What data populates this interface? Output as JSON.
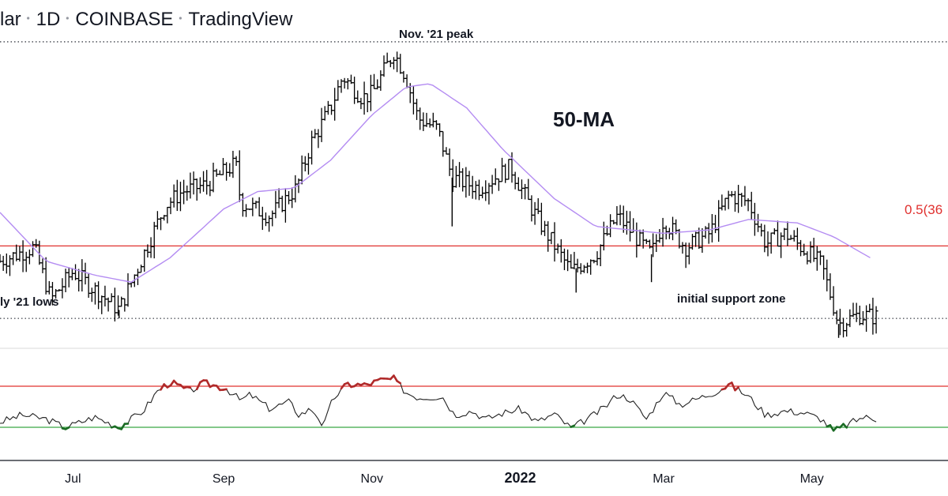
{
  "header": {
    "title_parts": [
      "lar",
      "1D",
      "COINBASE",
      "TradingView"
    ]
  },
  "annotations": {
    "peak": "Nov. '21 peak",
    "lows": "ly '21 lows",
    "support": "initial support zone",
    "ma": "50-MA",
    "fib": "0.5(36"
  },
  "colors": {
    "candle": "#000000",
    "ma": "#b48cf2",
    "fib_line": "#e0312f",
    "osc_line": "#222222",
    "osc_over": "#e0312f",
    "osc_under": "#3aa845",
    "osc_red_seg": "#b02a2a",
    "osc_green_seg": "#1a6b24",
    "separator": "#d8d8d8"
  },
  "chart_data": {
    "type": "line",
    "period": "1D",
    "x_ticks": [
      {
        "label": "Jul",
        "date": "2021-07-01",
        "bold": false
      },
      {
        "label": "Sep",
        "date": "2021-09-01",
        "bold": false
      },
      {
        "label": "Nov",
        "date": "2021-11-01",
        "bold": false
      },
      {
        "label": "2022",
        "date": "2022-01-01",
        "bold": true
      },
      {
        "label": "Mar",
        "date": "2022-03-01",
        "bold": false
      },
      {
        "label": "May",
        "date": "2022-05-01",
        "bold": false
      }
    ],
    "x_range": [
      "2021-06-01",
      "2022-06-26"
    ],
    "price_range": [
      25000,
      75000
    ],
    "price_levels": {
      "peak": 69000,
      "fib_05": 39700,
      "lows": 29300
    },
    "price_series": {
      "name": "price",
      "points": [
        [
          "2021-06-01",
          37500
        ],
        [
          "2021-06-15",
          39500
        ],
        [
          "2021-06-22",
          32000
        ],
        [
          "2021-07-01",
          36000
        ],
        [
          "2021-07-20",
          30500
        ],
        [
          "2021-08-01",
          40000
        ],
        [
          "2021-08-08",
          45500
        ],
        [
          "2021-08-15",
          47500
        ],
        [
          "2021-08-25",
          48500
        ],
        [
          "2021-09-06",
          51500
        ],
        [
          "2021-09-08",
          46000
        ],
        [
          "2021-09-20",
          44000
        ],
        [
          "2021-10-01",
          48000
        ],
        [
          "2021-10-07",
          54500
        ],
        [
          "2021-10-15",
          59500
        ],
        [
          "2021-10-20",
          64000
        ],
        [
          "2021-10-28",
          61000
        ],
        [
          "2021-11-01",
          61500
        ],
        [
          "2021-11-10",
          67500
        ],
        [
          "2021-11-15",
          64000
        ],
        [
          "2021-11-20",
          58000
        ],
        [
          "2021-11-28",
          56500
        ],
        [
          "2021-12-04",
          49500
        ],
        [
          "2021-12-15",
          48000
        ],
        [
          "2021-12-28",
          51000
        ],
        [
          "2022-01-05",
          45500
        ],
        [
          "2022-01-10",
          42500
        ],
        [
          "2022-01-22",
          36000
        ],
        [
          "2022-02-01",
          38500
        ],
        [
          "2022-02-10",
          44000
        ],
        [
          "2022-02-20",
          40000
        ],
        [
          "2022-02-24",
          38500
        ],
        [
          "2022-03-01",
          43500
        ],
        [
          "2022-03-10",
          39500
        ],
        [
          "2022-03-20",
          41500
        ],
        [
          "2022-03-28",
          47000
        ],
        [
          "2022-04-05",
          46000
        ],
        [
          "2022-04-12",
          40000
        ],
        [
          "2022-04-20",
          41500
        ],
        [
          "2022-04-30",
          38500
        ],
        [
          "2022-05-05",
          37000
        ],
        [
          "2022-05-10",
          31000
        ],
        [
          "2022-05-12",
          28500
        ],
        [
          "2022-05-20",
          29800
        ],
        [
          "2022-05-28",
          29500
        ]
      ]
    },
    "ma_series": {
      "name": "50-MA",
      "points": [
        [
          "2021-06-01",
          44500
        ],
        [
          "2021-06-20",
          37500
        ],
        [
          "2021-07-10",
          35500
        ],
        [
          "2021-07-25",
          34500
        ],
        [
          "2021-08-10",
          38000
        ],
        [
          "2021-09-01",
          45000
        ],
        [
          "2021-09-15",
          47500
        ],
        [
          "2021-09-30",
          48000
        ],
        [
          "2021-10-15",
          52000
        ],
        [
          "2021-11-01",
          58500
        ],
        [
          "2021-11-15",
          62500
        ],
        [
          "2021-11-25",
          63000
        ],
        [
          "2021-12-10",
          59500
        ],
        [
          "2021-12-25",
          53500
        ],
        [
          "2022-01-15",
          46500
        ],
        [
          "2022-02-01",
          42500
        ],
        [
          "2022-02-15",
          42000
        ],
        [
          "2022-03-01",
          41500
        ],
        [
          "2022-03-20",
          42000
        ],
        [
          "2022-04-05",
          43500
        ],
        [
          "2022-04-25",
          43000
        ],
        [
          "2022-05-10",
          41000
        ],
        [
          "2022-05-25",
          38000
        ]
      ]
    },
    "oscillator": {
      "range": [
        0,
        100
      ],
      "overbought": 70,
      "oversold": 30,
      "points": [
        [
          "2021-06-01",
          35
        ],
        [
          "2021-06-10",
          42
        ],
        [
          "2021-06-20",
          38
        ],
        [
          "2021-06-28",
          30
        ],
        [
          "2021-07-10",
          40
        ],
        [
          "2021-07-20",
          30
        ],
        [
          "2021-07-30",
          46
        ],
        [
          "2021-08-05",
          66
        ],
        [
          "2021-08-10",
          74
        ],
        [
          "2021-08-18",
          65
        ],
        [
          "2021-08-24",
          73
        ],
        [
          "2021-09-02",
          68
        ],
        [
          "2021-09-08",
          56
        ],
        [
          "2021-09-12",
          62
        ],
        [
          "2021-09-20",
          48
        ],
        [
          "2021-09-28",
          55
        ],
        [
          "2021-10-02",
          42
        ],
        [
          "2021-10-07",
          48
        ],
        [
          "2021-10-10",
          40
        ],
        [
          "2021-10-12",
          30
        ],
        [
          "2021-10-16",
          58
        ],
        [
          "2021-10-22",
          72
        ],
        [
          "2021-10-29",
          71
        ],
        [
          "2021-11-05",
          76
        ],
        [
          "2021-11-10",
          77
        ],
        [
          "2021-11-15",
          64
        ],
        [
          "2021-11-20",
          59
        ],
        [
          "2021-11-30",
          60
        ],
        [
          "2021-12-05",
          42
        ],
        [
          "2021-12-12",
          46
        ],
        [
          "2021-12-18",
          38
        ],
        [
          "2021-12-25",
          44
        ],
        [
          "2022-01-01",
          48
        ],
        [
          "2022-01-08",
          35
        ],
        [
          "2022-01-15",
          43
        ],
        [
          "2022-01-22",
          29
        ],
        [
          "2022-01-30",
          40
        ],
        [
          "2022-02-05",
          50
        ],
        [
          "2022-02-10",
          62
        ],
        [
          "2022-02-15",
          58
        ],
        [
          "2022-02-22",
          38
        ],
        [
          "2022-03-01",
          64
        ],
        [
          "2022-03-08",
          52
        ],
        [
          "2022-03-15",
          58
        ],
        [
          "2022-03-22",
          64
        ],
        [
          "2022-03-28",
          72
        ],
        [
          "2022-04-05",
          60
        ],
        [
          "2022-04-12",
          42
        ],
        [
          "2022-04-20",
          46
        ],
        [
          "2022-04-28",
          44
        ],
        [
          "2022-05-05",
          38
        ],
        [
          "2022-05-10",
          26
        ],
        [
          "2022-05-15",
          32
        ],
        [
          "2022-05-22",
          40
        ],
        [
          "2022-05-28",
          38
        ]
      ]
    }
  }
}
